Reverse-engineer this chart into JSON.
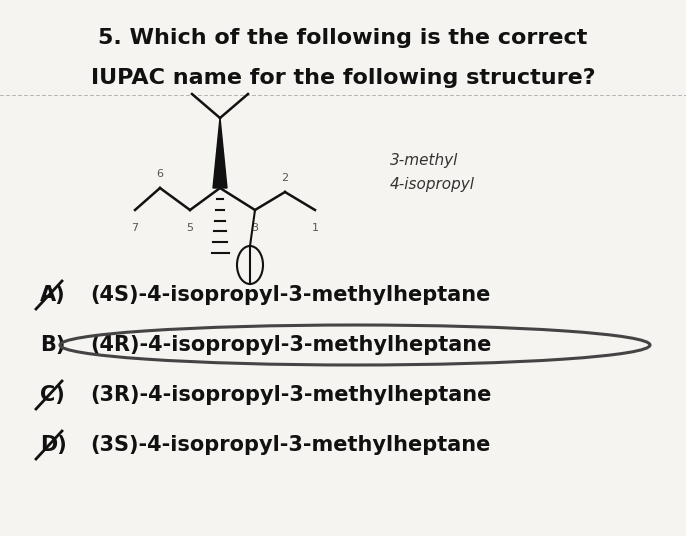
{
  "title_line1": "5. Which of the following is the correct",
  "title_line2": "IUPAC name for the following structure?",
  "annotation_line1": "3-methyl",
  "annotation_line2": "4-isopropyl",
  "options": [
    {
      "label": "A)",
      "text": "(4S)-4-isopropyl-3-methylheptane",
      "circled": false,
      "crossed": true
    },
    {
      "label": "B)",
      "text": "(4R)-4-isopropyl-3-methylheptane",
      "circled": true,
      "crossed": false
    },
    {
      "label": "C)",
      "text": "(3R)-4-isopropyl-3-methylheptane",
      "circled": false,
      "crossed": true
    },
    {
      "label": "D)",
      "text": "(3S)-4-isopropyl-3-methylheptane",
      "circled": false,
      "crossed": true
    }
  ],
  "bg_color": "#f5f4f0",
  "text_color": "#111111",
  "circle_color": "#444444",
  "title_fontsize": 15,
  "option_fontsize": 15
}
